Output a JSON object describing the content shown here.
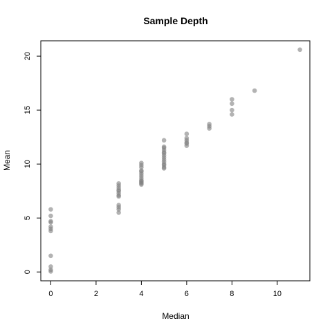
{
  "chart_data": {
    "type": "scatter",
    "title": "Sample Depth",
    "xlabel": "Median",
    "ylabel": "Mean",
    "xlim": [
      -0.44,
      11.44
    ],
    "ylim": [
      -0.82,
      21.42
    ],
    "xticks": [
      0,
      2,
      4,
      6,
      8,
      10
    ],
    "yticks": [
      0,
      5,
      10,
      15,
      20
    ],
    "grid": false,
    "point_color": "#808080",
    "series": [
      {
        "points": [
          [
            0,
            5.8
          ],
          [
            0,
            5.2
          ],
          [
            0,
            4.7
          ],
          [
            0,
            4.6
          ],
          [
            0,
            4.2
          ],
          [
            0,
            4.0
          ],
          [
            0,
            3.8
          ],
          [
            0,
            1.5
          ],
          [
            0,
            0.5
          ],
          [
            0,
            0.2
          ],
          [
            0,
            0.05
          ],
          [
            3,
            8.2
          ],
          [
            3,
            8.0
          ],
          [
            3,
            7.8
          ],
          [
            3,
            7.6
          ],
          [
            3,
            7.5
          ],
          [
            3,
            7.3
          ],
          [
            3,
            7.1
          ],
          [
            3,
            7.0
          ],
          [
            3,
            6.2
          ],
          [
            3,
            6.0
          ],
          [
            3,
            5.8
          ],
          [
            3,
            5.5
          ],
          [
            4,
            10.1
          ],
          [
            4,
            9.9
          ],
          [
            4,
            9.7
          ],
          [
            4,
            9.4
          ],
          [
            4,
            9.3
          ],
          [
            4,
            9.1
          ],
          [
            4,
            8.9
          ],
          [
            4,
            8.7
          ],
          [
            4,
            8.5
          ],
          [
            4,
            8.4
          ],
          [
            4,
            8.3
          ],
          [
            4,
            8.2
          ],
          [
            4,
            8.1
          ],
          [
            5,
            12.2
          ],
          [
            5,
            11.6
          ],
          [
            5,
            11.5
          ],
          [
            5,
            11.3
          ],
          [
            5,
            11.1
          ],
          [
            5,
            11.0
          ],
          [
            5,
            10.8
          ],
          [
            5,
            10.6
          ],
          [
            5,
            10.4
          ],
          [
            5,
            10.2
          ],
          [
            5,
            10.0
          ],
          [
            5,
            9.9
          ],
          [
            5,
            9.7
          ],
          [
            5,
            9.6
          ],
          [
            6,
            12.8
          ],
          [
            6,
            12.4
          ],
          [
            6,
            12.2
          ],
          [
            6,
            12.0
          ],
          [
            6,
            11.9
          ],
          [
            6,
            11.7
          ],
          [
            7,
            13.7
          ],
          [
            7,
            13.5
          ],
          [
            7,
            13.3
          ],
          [
            8,
            16.0
          ],
          [
            8,
            15.6
          ],
          [
            8,
            15.0
          ],
          [
            8,
            14.6
          ],
          [
            9,
            16.8
          ],
          [
            11,
            20.6
          ]
        ]
      }
    ]
  }
}
